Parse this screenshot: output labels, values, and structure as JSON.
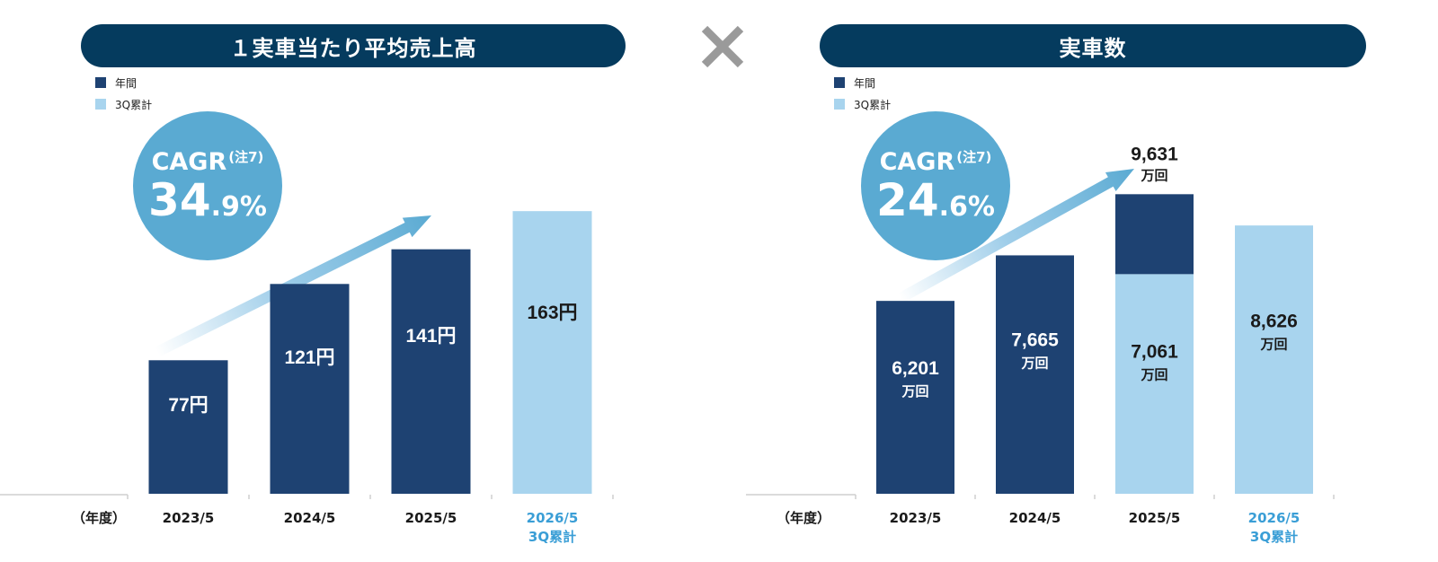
{
  "left_panel": {
    "title": "１実車当たり平均売上高",
    "legend": [
      {
        "label": "年間",
        "color": "#1e4272"
      },
      {
        "label": "3Q累計",
        "color": "#a8d4ee"
      }
    ],
    "cagr": {
      "label": "CAGR",
      "note": "(注7)",
      "value_int": "34",
      "value_dec": ".9%"
    }
  },
  "right_panel": {
    "title": "実車数",
    "legend": [
      {
        "label": "年間",
        "color": "#1e4272"
      },
      {
        "label": "3Q累計",
        "color": "#a8d4ee"
      }
    ],
    "cagr": {
      "label": "CAGR",
      "note": "(注7)",
      "value_int": "24",
      "value_dec": ".6%"
    }
  },
  "colors": {
    "annual": "#1e4272",
    "cumulative": "#a8d4ee",
    "highlight_text": "#3a9ed6",
    "pill": "#053b5e",
    "cagr_circle": "#5aaad2",
    "times": "#9a9a9a"
  },
  "chart_data": [
    {
      "type": "bar",
      "title": "１実車当たり平均売上高",
      "xlabel": "（年度）",
      "categories": [
        "2023/5",
        "2024/5",
        "2025/5",
        "2026/5\n3Q累計"
      ],
      "series": [
        {
          "name": "年間",
          "values": [
            77,
            121,
            141,
            null
          ]
        },
        {
          "name": "3Q累計",
          "values": [
            null,
            null,
            null,
            163
          ]
        }
      ],
      "data_labels": [
        "77円",
        "121円",
        "141円",
        "163円"
      ],
      "ylim": [
        0,
        175
      ],
      "legend_position": "top-left"
    },
    {
      "type": "bar",
      "title": "実車数",
      "xlabel": "（年度）",
      "unit": "万回",
      "categories": [
        "2023/5",
        "2024/5",
        "2025/5",
        "2026/5\n3Q累計"
      ],
      "series": [
        {
          "name": "年間",
          "values": [
            6201,
            7665,
            9631,
            null
          ]
        },
        {
          "name": "3Q累計",
          "values": [
            null,
            null,
            7061,
            8626
          ]
        }
      ],
      "data_labels": [
        "6,201",
        "7,665",
        "7,061",
        "8,626"
      ],
      "total_labels": [
        null,
        null,
        "9,631",
        null
      ],
      "ylim": [
        0,
        9900
      ],
      "legend_position": "top-left"
    }
  ]
}
